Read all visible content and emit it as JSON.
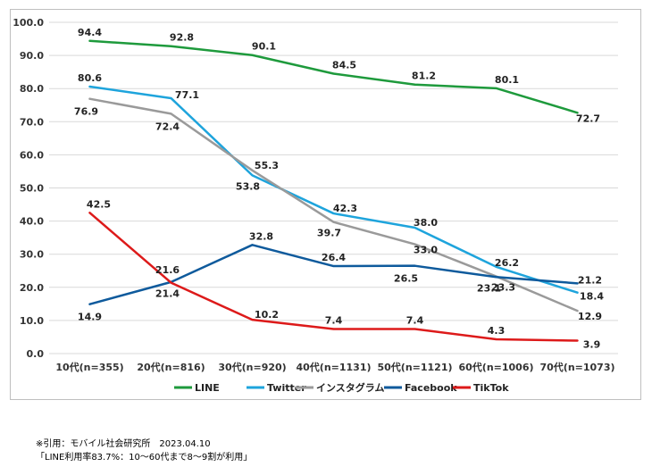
{
  "chart_data": {
    "type": "line",
    "categories": [
      "10代(n=355)",
      "20代(n=816)",
      "30代(n=920)",
      "40代(n=1131)",
      "50代(n=1121)",
      "60代(n=1006)",
      "70代(n=1073)"
    ],
    "ylim": [
      0,
      100
    ],
    "yticks": [
      "0.0",
      "10.0",
      "20.0",
      "30.0",
      "40.0",
      "50.0",
      "60.0",
      "70.0",
      "80.0",
      "90.0",
      "100.0"
    ],
    "grid": true,
    "legend_position": "bottom",
    "series": [
      {
        "name": "LINE",
        "color": "#1e9a3c",
        "values": [
          94.4,
          92.8,
          90.1,
          84.5,
          81.2,
          80.1,
          72.7
        ]
      },
      {
        "name": "Twitter",
        "color": "#1ea4dc",
        "values": [
          80.6,
          77.1,
          53.8,
          42.3,
          38.0,
          26.2,
          18.4
        ]
      },
      {
        "name": "インスタグラム",
        "color": "#9a9a9a",
        "values": [
          76.9,
          72.4,
          55.3,
          39.7,
          33.0,
          23.3,
          12.9
        ]
      },
      {
        "name": "Facebook",
        "color": "#0e5a9c",
        "values": [
          14.9,
          21.6,
          32.8,
          26.4,
          26.5,
          23.1,
          21.2
        ]
      },
      {
        "name": "TikTok",
        "color": "#dd1a1a",
        "values": [
          42.5,
          21.4,
          10.2,
          7.4,
          7.4,
          4.3,
          3.9
        ]
      }
    ]
  },
  "note": {
    "line1": "※引用：モバイル社会研究所　2023.04.10",
    "line2": "「LINE利用率83.7%：10～60代まで8～9割が利用」"
  }
}
